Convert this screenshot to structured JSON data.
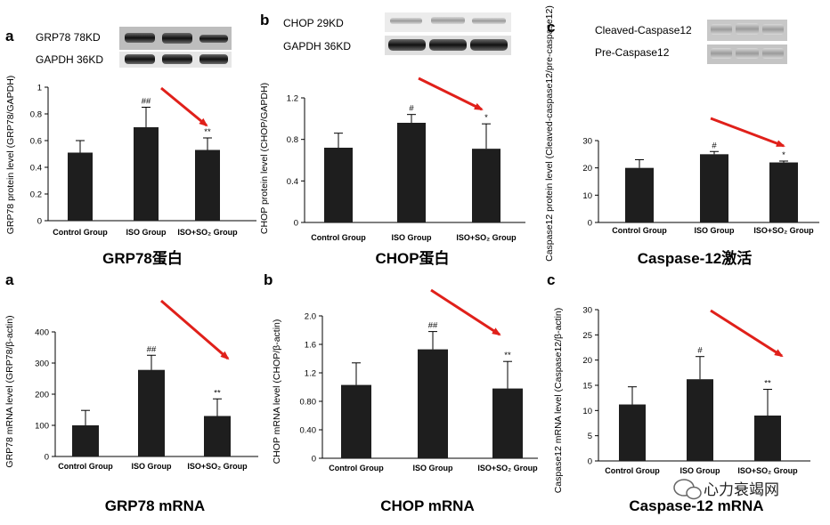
{
  "watermark": {
    "icon": "wechat-icon",
    "text": "心力衰竭网"
  },
  "colors": {
    "bar": "#1e1e1e",
    "arrow": "#e0201a",
    "axis": "#000000"
  },
  "chart_data": [
    {
      "type": "bar",
      "panel": "a",
      "caption": "GRP78蛋白",
      "ylabel": "GRP78 protein level (GRP78/GAPDH)",
      "categories": [
        "Control Group",
        "ISO Group",
        "ISO+SO₂ Group"
      ],
      "values": [
        0.51,
        0.7,
        0.53
      ],
      "errors": [
        0.09,
        0.15,
        0.09
      ],
      "annotations": [
        "",
        "##",
        "**"
      ],
      "ylim": [
        0,
        1.0
      ],
      "yticks": [
        0,
        0.2,
        0.4,
        0.6,
        0.8,
        1.0
      ],
      "ytick_labels": [
        "0",
        "0.2",
        "0.4",
        "0.6",
        "0.8",
        "1"
      ],
      "blots": [
        "GRP78  78KD",
        "GAPDH 36KD"
      ]
    },
    {
      "type": "bar",
      "panel": "b",
      "caption": "CHOP蛋白",
      "ylabel": "CHOP protein level (CHOP/GAPDH)",
      "categories": [
        "Control Group",
        "ISO Group",
        "ISO+SO₂ Group"
      ],
      "values": [
        0.72,
        0.96,
        0.71
      ],
      "errors": [
        0.14,
        0.08,
        0.24
      ],
      "annotations": [
        "",
        "#",
        "*"
      ],
      "ylim": [
        0,
        1.2
      ],
      "yticks": [
        0,
        0.4,
        0.8,
        1.2
      ],
      "ytick_labels": [
        "0",
        "0.4",
        "0.8",
        "1.2"
      ],
      "blots": [
        "CHOP  29KD",
        "GAPDH 36KD"
      ]
    },
    {
      "type": "bar",
      "panel": "c",
      "caption": "Caspase-12激活",
      "ylabel": "Caspase12 protein level (Cleaved-caspase12/pre-caspase12)",
      "categories": [
        "Control Group",
        "ISO Group",
        "ISO+SO₂ Group"
      ],
      "values": [
        20,
        25,
        22
      ],
      "errors": [
        3,
        1,
        0.5
      ],
      "annotations": [
        "",
        "#",
        "*"
      ],
      "ylim": [
        0,
        30
      ],
      "yticks": [
        0,
        10,
        20,
        30
      ],
      "ytick_labels": [
        "0",
        "10",
        "20",
        "30"
      ],
      "blots": [
        "Cleaved-Caspase12",
        "Pre-Caspase12"
      ]
    },
    {
      "type": "bar",
      "panel": "a",
      "caption": "GRP78 mRNA",
      "ylabel": "GRP78 mRNA level (GRP78/β-actin)",
      "categories": [
        "Control Group",
        "ISO Group",
        "ISO+SO₂ Group"
      ],
      "values": [
        100,
        278,
        130
      ],
      "errors": [
        48,
        47,
        55
      ],
      "annotations": [
        "",
        "##",
        "**"
      ],
      "ylim": [
        0,
        400
      ],
      "yticks": [
        0,
        100,
        200,
        300,
        400
      ],
      "ytick_labels": [
        "0",
        "100",
        "200",
        "300",
        "400"
      ]
    },
    {
      "type": "bar",
      "panel": "b",
      "caption": "CHOP mRNA",
      "ylabel": "CHOP mRNA level (CHOP/β-actin)",
      "categories": [
        "Control Group",
        "ISO Group",
        "ISO+SO₂ Group"
      ],
      "values": [
        1.03,
        1.53,
        0.98
      ],
      "errors": [
        0.31,
        0.25,
        0.38
      ],
      "annotations": [
        "",
        "##",
        "**"
      ],
      "ylim": [
        0,
        2.0
      ],
      "yticks": [
        0,
        0.4,
        0.8,
        1.2,
        1.6,
        2.0
      ],
      "ytick_labels": [
        "0",
        "0.40",
        "0.80",
        "1.2",
        "1.6",
        "2.0"
      ]
    },
    {
      "type": "bar",
      "panel": "c",
      "caption": "Caspase-12 mRNA",
      "ylabel": "Caspase12 mRNA level (Caspase12/β-actin)",
      "categories": [
        "Control Group",
        "ISO Group",
        "ISO+SO₂ Group"
      ],
      "values": [
        11.2,
        16.2,
        9.0
      ],
      "errors": [
        3.5,
        4.5,
        5.2
      ],
      "annotations": [
        "",
        "#",
        "**"
      ],
      "ylim": [
        0,
        30
      ],
      "yticks": [
        0,
        5,
        10,
        15,
        20,
        25,
        30
      ],
      "ytick_labels": [
        "0",
        "5",
        "10",
        "15",
        "20",
        "25",
        "30"
      ]
    }
  ]
}
